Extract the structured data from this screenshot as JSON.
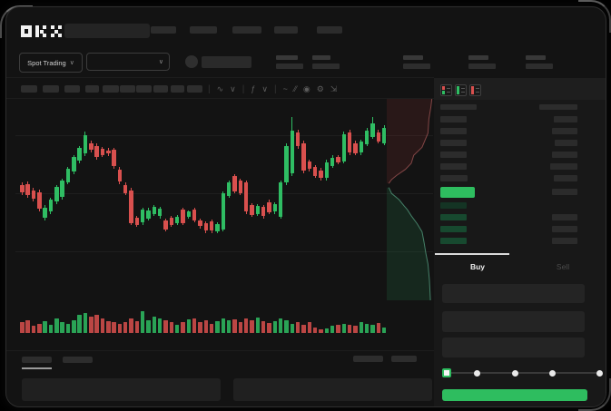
{
  "meta": {
    "platform": "OKX",
    "page_type": "spot-trading-terminal"
  },
  "colors": {
    "up": "#2fbd63",
    "down": "#d9504e",
    "accent_green": "#2ebd5f",
    "bid_row": "#17492f",
    "bid_row_faint": "#143424",
    "ask_bar": "#2c2c2c",
    "amount_bar": "#2b2b2b",
    "placeholder": "#2d2d2d",
    "placeholder_bright": "#383838",
    "tab_indicator": "#d9d9d9",
    "depth_ask_fill": "rgba(180,60,60,0.14)",
    "depth_ask_line": "rgba(214,110,110,0.55)",
    "depth_bid_fill": "rgba(40,170,100,0.14)",
    "depth_bid_line": "rgba(110,210,170,0.55)"
  },
  "top_nav": {
    "logo_text": "OKX",
    "search_value": "",
    "nav_item_widths": [
      28,
      30,
      32,
      26,
      28
    ]
  },
  "ticker_row": {
    "market_dropdown_label": "Spot Trading",
    "dropdown_chevron": "∨",
    "pair_name_width": 55,
    "stat_widths": [
      [
        24,
        30
      ],
      [
        20,
        30
      ],
      [
        22,
        30
      ],
      [
        22,
        30
      ],
      [
        22,
        30
      ]
    ]
  },
  "chart_toolbar": {
    "timeframe_widths": [
      18,
      18,
      17,
      15,
      18,
      17,
      17,
      16,
      15,
      17
    ],
    "icons": [
      {
        "name": "divider",
        "glyph": "|"
      },
      {
        "name": "indicators-zigzag-icon",
        "glyph": "∿"
      },
      {
        "name": "chevron-down-icon",
        "glyph": "∨"
      },
      {
        "name": "divider",
        "glyph": "|"
      },
      {
        "name": "fx-indicator-icon",
        "glyph": "ƒ"
      },
      {
        "name": "chevron-down-icon",
        "glyph": "∨"
      },
      {
        "name": "divider",
        "glyph": "|"
      },
      {
        "name": "trendline-tool-icon",
        "glyph": "~"
      },
      {
        "name": "measure-tool-icon",
        "glyph": "⁄⁄"
      },
      {
        "name": "camera-snapshot-icon",
        "glyph": "◉"
      },
      {
        "name": "chart-settings-gear-icon",
        "glyph": "⚙"
      },
      {
        "name": "fullscreen-icon",
        "glyph": "⇲"
      }
    ]
  },
  "chart_data": {
    "type": "candlestick",
    "title": "",
    "xlabel": "",
    "ylabel": "",
    "ylim": [
      0,
      100
    ],
    "grid": true,
    "gridline_count": 3,
    "candles_ohlc": [
      [
        42.1,
        44.0,
        34.5,
        36.4
      ],
      [
        42.9,
        45.0,
        32.5,
        34.3
      ],
      [
        37.9,
        40.0,
        29.5,
        31.4
      ],
      [
        36.4,
        38.5,
        21.5,
        23.6
      ],
      [
        16.4,
        26.5,
        14.5,
        24.3
      ],
      [
        21.4,
        32.5,
        19.5,
        30.7
      ],
      [
        29.3,
        42.5,
        27.5,
        40.7
      ],
      [
        32.9,
        47.5,
        31.0,
        45.7
      ],
      [
        44.3,
        56.5,
        42.5,
        55.0
      ],
      [
        52.9,
        66.0,
        51.0,
        64.3
      ],
      [
        61.4,
        73.0,
        59.0,
        71.4
      ],
      [
        67.1,
        84.0,
        65.0,
        81.4
      ],
      [
        75.0,
        77.0,
        68.0,
        70.0
      ],
      [
        72.9,
        75.0,
        62.5,
        64.3
      ],
      [
        70.7,
        72.0,
        64.0,
        65.7
      ],
      [
        69.3,
        71.5,
        65.0,
        67.1
      ],
      [
        70.0,
        71.5,
        55.0,
        57.1
      ],
      [
        54.3,
        56.5,
        43.0,
        45.0
      ],
      [
        42.1,
        44.0,
        34.0,
        35.7
      ],
      [
        37.9,
        40.0,
        10.5,
        12.1
      ],
      [
        16.4,
        18.0,
        9.0,
        10.7
      ],
      [
        12.9,
        24.5,
        11.0,
        22.9
      ],
      [
        15.7,
        24.0,
        14.0,
        22.1
      ],
      [
        19.3,
        26.5,
        17.5,
        25.0
      ],
      [
        17.9,
        25.0,
        16.0,
        23.6
      ],
      [
        14.3,
        16.0,
        5.5,
        7.1
      ],
      [
        16.4,
        18.0,
        9.0,
        10.7
      ],
      [
        12.1,
        18.5,
        10.5,
        17.1
      ],
      [
        22.9,
        24.5,
        10.5,
        12.1
      ],
      [
        17.1,
        22.5,
        15.5,
        21.4
      ],
      [
        22.9,
        24.5,
        12.5,
        14.3
      ],
      [
        14.3,
        16.0,
        8.0,
        10.0
      ],
      [
        12.1,
        13.5,
        4.5,
        6.4
      ],
      [
        13.6,
        15.0,
        4.5,
        6.4
      ],
      [
        5.7,
        13.0,
        4.0,
        11.4
      ],
      [
        7.1,
        37.5,
        5.5,
        35.7
      ],
      [
        33.6,
        46.0,
        32.0,
        44.3
      ],
      [
        49.3,
        51.0,
        35.5,
        37.1
      ],
      [
        45.7,
        47.5,
        34.0,
        35.7
      ],
      [
        44.3,
        46.0,
        19.5,
        21.4
      ],
      [
        26.4,
        28.0,
        17.0,
        18.6
      ],
      [
        19.3,
        27.0,
        17.5,
        25.7
      ],
      [
        25.0,
        26.5,
        16.0,
        17.9
      ],
      [
        28.6,
        31.0,
        19.0,
        20.7
      ],
      [
        21.4,
        28.5,
        19.5,
        27.1
      ],
      [
        17.1,
        46.0,
        15.5,
        44.3
      ],
      [
        44.3,
        75.0,
        42.5,
        72.9
      ],
      [
        51.4,
        95.7,
        49.5,
        85.0
      ],
      [
        83.6,
        85.5,
        71.0,
        72.9
      ],
      [
        75.0,
        77.0,
        51.5,
        53.6
      ],
      [
        60.7,
        62.5,
        53.0,
        55.0
      ],
      [
        56.4,
        58.0,
        47.5,
        49.3
      ],
      [
        53.6,
        55.5,
        46.0,
        47.9
      ],
      [
        47.9,
        62.0,
        46.0,
        60.0
      ],
      [
        57.1,
        65.5,
        55.5,
        63.6
      ],
      [
        64.3,
        66.0,
        58.5,
        60.0
      ],
      [
        60.7,
        84.0,
        59.0,
        82.1
      ],
      [
        83.6,
        85.5,
        66.0,
        67.9
      ],
      [
        75.0,
        77.0,
        65.5,
        67.1
      ],
      [
        67.9,
        78.0,
        66.0,
        76.4
      ],
      [
        74.3,
        87.0,
        72.5,
        85.0
      ],
      [
        80.0,
        95.7,
        78.5,
        90.7
      ],
      [
        83.6,
        85.5,
        75.0,
        76.4
      ],
      [
        75.0,
        89.0,
        73.5,
        87.1
      ]
    ],
    "volume": [
      12,
      14,
      8,
      10,
      13,
      9,
      16,
      12,
      10,
      14,
      20,
      22,
      18,
      20,
      16,
      13,
      12,
      10,
      12,
      16,
      13,
      24,
      14,
      18,
      16,
      14,
      12,
      9,
      12,
      15,
      16,
      12,
      14,
      10,
      13,
      16,
      14,
      15,
      12,
      16,
      14,
      17,
      13,
      11,
      13,
      16,
      14,
      10,
      12,
      9,
      12,
      6,
      4,
      5,
      8,
      9,
      10,
      9,
      8,
      12,
      10,
      9,
      11,
      6
    ],
    "depth_overlay": {
      "asks": [
        [
          0.92,
          0.0
        ],
        [
          0.9,
          0.04
        ],
        [
          0.86,
          0.1
        ],
        [
          0.84,
          0.17
        ],
        [
          0.72,
          0.24
        ],
        [
          0.55,
          0.28
        ],
        [
          0.5,
          0.32
        ],
        [
          0.38,
          0.35
        ],
        [
          0.2,
          0.38
        ],
        [
          0.1,
          0.4
        ],
        [
          0.04,
          0.42
        ]
      ],
      "bids": [
        [
          0.04,
          0.44
        ],
        [
          0.1,
          0.47
        ],
        [
          0.25,
          0.5
        ],
        [
          0.35,
          0.53
        ],
        [
          0.42,
          0.55
        ],
        [
          0.5,
          0.58
        ],
        [
          0.62,
          0.62
        ],
        [
          0.72,
          0.66
        ],
        [
          0.76,
          0.71
        ],
        [
          0.8,
          0.77
        ],
        [
          0.84,
          0.82
        ],
        [
          0.87,
          0.9
        ],
        [
          0.89,
          1.0
        ]
      ]
    }
  },
  "order_book": {
    "view_toggles": [
      {
        "name": "orderbook-combined-view-icon",
        "style": "split"
      },
      {
        "name": "orderbook-bids-only-icon",
        "style": "green"
      },
      {
        "name": "orderbook-asks-only-icon",
        "style": "red"
      }
    ],
    "header_widths": [
      40,
      42
    ],
    "asks": [
      {
        "price_w": 29,
        "amount_w": 26
      },
      {
        "price_w": 29,
        "amount_w": 28
      },
      {
        "price_w": 29,
        "amount_w": 25
      },
      {
        "price_w": 29,
        "amount_w": 28
      },
      {
        "price_w": 29,
        "amount_w": 30
      },
      {
        "price_w": 30,
        "amount_w": 26
      }
    ],
    "last_price_row": {
      "highlighted": true,
      "price_w": 38,
      "amount_w": 28
    },
    "bids": [
      {
        "price_w": 29,
        "amount_w": null,
        "faint": true
      },
      {
        "price_w": 29,
        "amount_w": 28,
        "faint": false
      },
      {
        "price_w": 29,
        "amount_w": 28,
        "faint": false
      },
      {
        "price_w": 29,
        "amount_w": 28,
        "faint": false
      }
    ]
  },
  "trade_panel": {
    "tabs": [
      {
        "label": "Buy",
        "active": true
      },
      {
        "label": "Sell",
        "active": false
      }
    ],
    "field_count": 3,
    "slider": {
      "steps": 5,
      "active_step": 0
    },
    "submit_button_label": ""
  },
  "bottom_panel": {
    "tab_widths": [
      33,
      33
    ],
    "active_tab_index": 0,
    "right_action_widths": [
      33,
      28
    ],
    "content_panel_count": 2
  }
}
